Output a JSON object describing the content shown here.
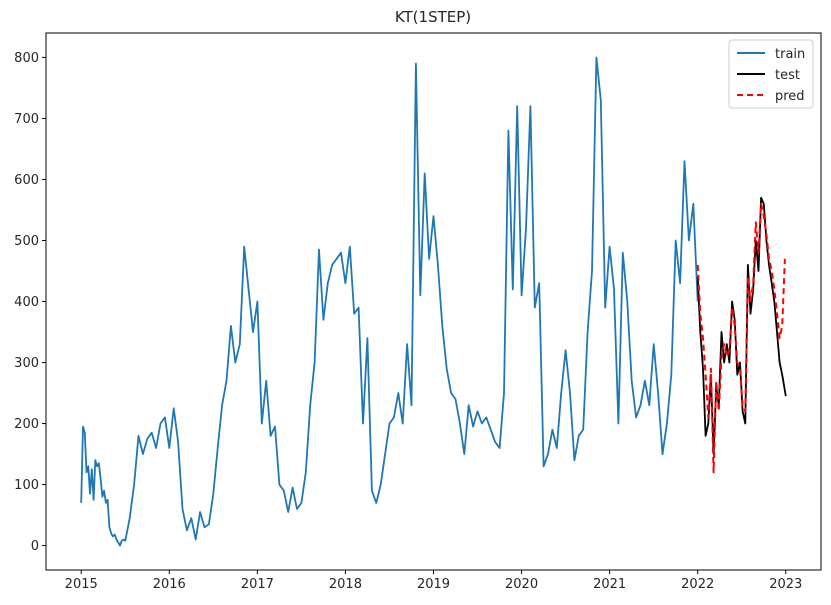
{
  "chart_data": {
    "type": "line",
    "title": "KT(1STEP)",
    "xlabel": "",
    "ylabel": "",
    "xlim": [
      2014.6,
      2023.4
    ],
    "ylim": [
      -40,
      840
    ],
    "x_ticks": [
      2015,
      2016,
      2017,
      2018,
      2019,
      2020,
      2021,
      2022,
      2023
    ],
    "y_ticks": [
      0,
      100,
      200,
      300,
      400,
      500,
      600,
      700,
      800
    ],
    "grid": false,
    "legend_position": "top-right",
    "series": [
      {
        "name": "train",
        "color": "#1f77b4",
        "style": "solid",
        "x": [
          2015.0,
          2015.02,
          2015.04,
          2015.06,
          2015.08,
          2015.1,
          2015.12,
          2015.14,
          2015.16,
          2015.18,
          2015.2,
          2015.22,
          2015.24,
          2015.26,
          2015.28,
          2015.3,
          2015.32,
          2015.34,
          2015.36,
          2015.38,
          2015.4,
          2015.42,
          2015.44,
          2015.46,
          2015.48,
          2015.5,
          2015.55,
          2015.6,
          2015.65,
          2015.7,
          2015.75,
          2015.8,
          2015.85,
          2015.9,
          2015.95,
          2016.0,
          2016.05,
          2016.1,
          2016.15,
          2016.2,
          2016.25,
          2016.3,
          2016.35,
          2016.4,
          2016.45,
          2016.5,
          2016.55,
          2016.6,
          2016.65,
          2016.7,
          2016.75,
          2016.8,
          2016.85,
          2016.9,
          2016.95,
          2017.0,
          2017.05,
          2017.1,
          2017.15,
          2017.2,
          2017.25,
          2017.3,
          2017.35,
          2017.4,
          2017.45,
          2017.5,
          2017.55,
          2017.6,
          2017.65,
          2017.7,
          2017.75,
          2017.8,
          2017.85,
          2017.9,
          2017.95,
          2018.0,
          2018.05,
          2018.1,
          2018.15,
          2018.2,
          2018.25,
          2018.3,
          2018.35,
          2018.4,
          2018.45,
          2018.5,
          2018.55,
          2018.6,
          2018.65,
          2018.7,
          2018.75,
          2018.8,
          2018.85,
          2018.9,
          2018.95,
          2019.0,
          2019.05,
          2019.1,
          2019.15,
          2019.2,
          2019.25,
          2019.3,
          2019.35,
          2019.4,
          2019.45,
          2019.5,
          2019.55,
          2019.6,
          2019.65,
          2019.7,
          2019.75,
          2019.8,
          2019.85,
          2019.9,
          2019.95,
          2020.0,
          2020.05,
          2020.1,
          2020.15,
          2020.2,
          2020.25,
          2020.3,
          2020.35,
          2020.4,
          2020.45,
          2020.5,
          2020.55,
          2020.6,
          2020.65,
          2020.7,
          2020.75,
          2020.8,
          2020.85,
          2020.9,
          2020.95,
          2021.0,
          2021.05,
          2021.1,
          2021.15,
          2021.2,
          2021.25,
          2021.3,
          2021.35,
          2021.4,
          2021.45,
          2021.5,
          2021.55,
          2021.6,
          2021.65,
          2021.7,
          2021.75,
          2021.8,
          2021.85,
          2021.9,
          2021.95,
          2022.0
        ],
        "y": [
          70,
          195,
          185,
          120,
          130,
          85,
          125,
          75,
          140,
          130,
          135,
          110,
          80,
          90,
          70,
          75,
          30,
          20,
          15,
          18,
          10,
          5,
          0,
          8,
          10,
          8,
          45,
          100,
          180,
          150,
          175,
          185,
          160,
          200,
          210,
          160,
          225,
          170,
          60,
          25,
          45,
          10,
          55,
          30,
          35,
          85,
          160,
          230,
          270,
          360,
          300,
          330,
          490,
          420,
          350,
          400,
          200,
          270,
          180,
          195,
          100,
          90,
          55,
          95,
          60,
          70,
          120,
          230,
          300,
          485,
          370,
          430,
          460,
          470,
          480,
          430,
          490,
          380,
          390,
          200,
          340,
          90,
          70,
          100,
          150,
          200,
          210,
          250,
          200,
          330,
          230,
          790,
          410,
          610,
          470,
          540,
          460,
          360,
          290,
          250,
          240,
          200,
          150,
          230,
          195,
          220,
          200,
          210,
          190,
          170,
          160,
          250,
          680,
          420,
          720,
          410,
          520,
          720,
          390,
          430,
          130,
          150,
          190,
          160,
          250,
          320,
          250,
          140,
          180,
          190,
          350,
          450,
          800,
          730,
          390,
          490,
          420,
          200,
          480,
          400,
          270,
          210,
          230,
          270,
          230,
          330,
          250,
          150,
          200,
          280,
          500,
          430,
          630,
          500,
          560,
          400
        ]
      },
      {
        "name": "test",
        "color": "#000000",
        "style": "solid",
        "x": [
          2022.0,
          2022.03,
          2022.06,
          2022.09,
          2022.12,
          2022.15,
          2022.18,
          2022.21,
          2022.24,
          2022.27,
          2022.3,
          2022.33,
          2022.36,
          2022.39,
          2022.42,
          2022.45,
          2022.48,
          2022.51,
          2022.54,
          2022.57,
          2022.6,
          2022.63,
          2022.66,
          2022.69,
          2022.72,
          2022.75,
          2022.78,
          2022.81,
          2022.84,
          2022.87,
          2022.9,
          2022.93,
          2022.96,
          2023.0
        ],
        "y": [
          440,
          350,
          290,
          180,
          200,
          280,
          150,
          260,
          230,
          350,
          300,
          330,
          300,
          400,
          370,
          280,
          300,
          220,
          200,
          460,
          380,
          420,
          500,
          450,
          570,
          560,
          500,
          460,
          430,
          400,
          350,
          300,
          280,
          245
        ]
      },
      {
        "name": "pred",
        "color": "#ff0000",
        "style": "dashed",
        "x": [
          2022.0,
          2022.03,
          2022.06,
          2022.09,
          2022.12,
          2022.15,
          2022.18,
          2022.21,
          2022.24,
          2022.27,
          2022.3,
          2022.33,
          2022.36,
          2022.39,
          2022.42,
          2022.45,
          2022.48,
          2022.51,
          2022.54,
          2022.57,
          2022.6,
          2022.63,
          2022.66,
          2022.69,
          2022.72,
          2022.75,
          2022.78,
          2022.81,
          2022.84,
          2022.87,
          2022.9,
          2022.93,
          2022.96,
          2022.99
        ],
        "y": [
          460,
          380,
          340,
          280,
          210,
          290,
          120,
          270,
          220,
          310,
          330,
          310,
          320,
          390,
          360,
          300,
          290,
          230,
          220,
          440,
          400,
          430,
          530,
          480,
          560,
          540,
          510,
          470,
          450,
          420,
          380,
          340,
          360,
          470
        ]
      }
    ]
  }
}
